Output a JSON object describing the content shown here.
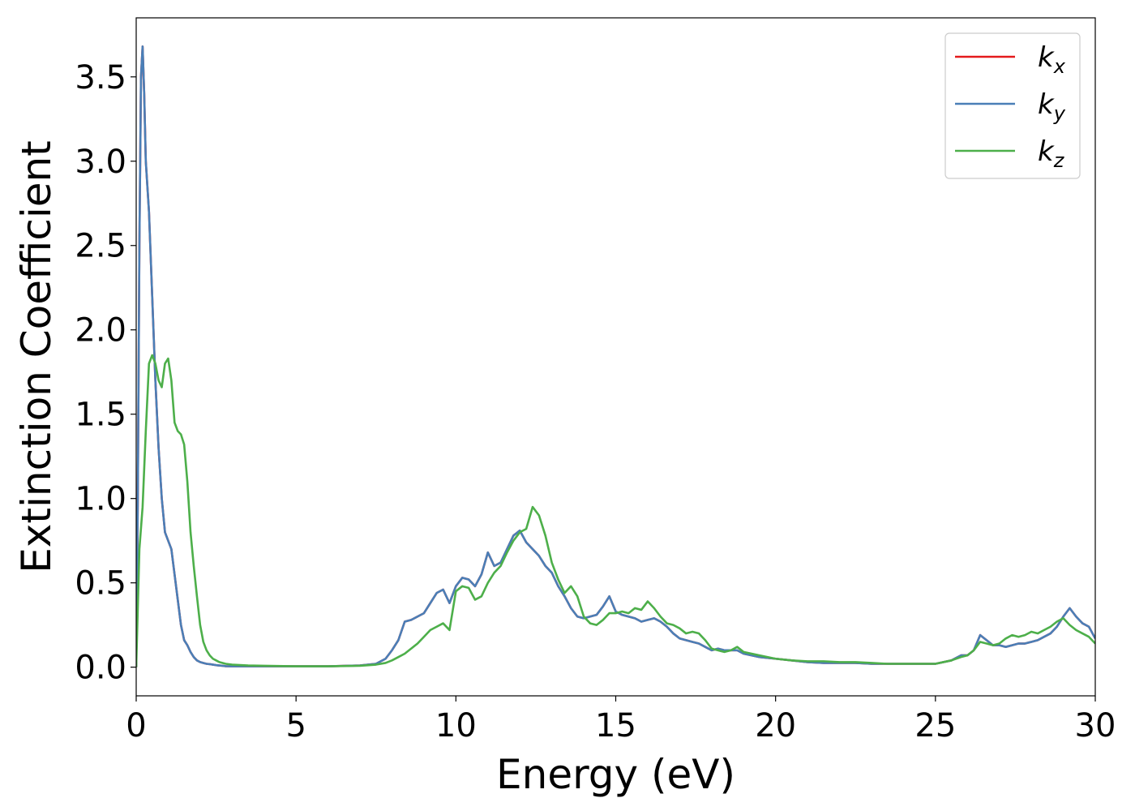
{
  "chart_data": {
    "type": "line",
    "title": "",
    "xlabel": "Energy (eV)",
    "ylabel": "Extinction Coefficient",
    "xlim": [
      0,
      30
    ],
    "ylim": [
      -0.17,
      3.85
    ],
    "xticks": [
      0,
      5,
      10,
      15,
      20,
      25,
      30
    ],
    "yticks": [
      0.0,
      0.5,
      1.0,
      1.5,
      2.0,
      2.5,
      3.0,
      3.5
    ],
    "xtick_labels": [
      "0",
      "5",
      "10",
      "15",
      "20",
      "25",
      "30"
    ],
    "ytick_labels": [
      "0.0",
      "0.5",
      "1.0",
      "1.5",
      "2.0",
      "2.5",
      "3.0",
      "3.5"
    ],
    "grid": false,
    "legend_position": "top-right",
    "series": [
      {
        "name": "k_x",
        "label_main": "k",
        "label_sub": "x",
        "color": "#e41a1c",
        "x": [
          0,
          0.05,
          0.1,
          0.15,
          0.2,
          0.25,
          0.3,
          0.4,
          0.5,
          0.6,
          0.7,
          0.8,
          0.9,
          1.0,
          1.1,
          1.2,
          1.3,
          1.4,
          1.5,
          1.6,
          1.7,
          1.8,
          1.9,
          2.0,
          2.1,
          2.2,
          2.3,
          2.4,
          2.5,
          2.6,
          2.7,
          2.8,
          3.0,
          3.5,
          4,
          5,
          6,
          7,
          7.5,
          7.8,
          8.0,
          8.2,
          8.4,
          8.6,
          8.8,
          9.0,
          9.2,
          9.4,
          9.6,
          9.8,
          10.0,
          10.2,
          10.4,
          10.6,
          10.8,
          11.0,
          11.2,
          11.4,
          11.6,
          11.8,
          12.0,
          12.2,
          12.4,
          12.6,
          12.8,
          13.0,
          13.2,
          13.4,
          13.6,
          13.8,
          14.0,
          14.2,
          14.4,
          14.6,
          14.8,
          15.0,
          15.2,
          15.4,
          15.6,
          15.8,
          16.0,
          16.2,
          16.4,
          16.6,
          16.8,
          17.0,
          17.2,
          17.4,
          17.6,
          17.8,
          18.0,
          18.2,
          18.4,
          18.6,
          18.8,
          19.0,
          19.5,
          20,
          20.5,
          21,
          21.5,
          22,
          22.5,
          23,
          23.5,
          24,
          24.5,
          25,
          25.5,
          25.8,
          26.0,
          26.2,
          26.4,
          26.6,
          26.8,
          27.0,
          27.2,
          27.4,
          27.6,
          27.8,
          28.0,
          28.2,
          28.4,
          28.6,
          28.8,
          29.0,
          29.2,
          29.4,
          29.6,
          29.8,
          30.0
        ],
        "y": [
          0.0,
          1.0,
          2.5,
          3.5,
          3.68,
          3.4,
          3.0,
          2.7,
          2.2,
          1.7,
          1.3,
          1.0,
          0.8,
          0.75,
          0.7,
          0.55,
          0.4,
          0.25,
          0.16,
          0.13,
          0.09,
          0.06,
          0.04,
          0.03,
          0.025,
          0.02,
          0.018,
          0.015,
          0.012,
          0.01,
          0.008,
          0.006,
          0.005,
          0.005,
          0.005,
          0.005,
          0.005,
          0.01,
          0.02,
          0.05,
          0.1,
          0.16,
          0.27,
          0.28,
          0.3,
          0.32,
          0.38,
          0.44,
          0.46,
          0.38,
          0.48,
          0.53,
          0.52,
          0.48,
          0.55,
          0.68,
          0.6,
          0.62,
          0.7,
          0.78,
          0.81,
          0.74,
          0.7,
          0.66,
          0.6,
          0.56,
          0.48,
          0.42,
          0.35,
          0.3,
          0.29,
          0.3,
          0.31,
          0.36,
          0.42,
          0.33,
          0.31,
          0.3,
          0.29,
          0.27,
          0.28,
          0.29,
          0.27,
          0.24,
          0.2,
          0.17,
          0.16,
          0.15,
          0.14,
          0.12,
          0.1,
          0.11,
          0.1,
          0.1,
          0.1,
          0.08,
          0.06,
          0.05,
          0.04,
          0.03,
          0.025,
          0.025,
          0.025,
          0.02,
          0.02,
          0.02,
          0.02,
          0.02,
          0.04,
          0.07,
          0.07,
          0.1,
          0.19,
          0.16,
          0.13,
          0.13,
          0.12,
          0.13,
          0.14,
          0.14,
          0.15,
          0.16,
          0.18,
          0.2,
          0.24,
          0.3,
          0.35,
          0.3,
          0.26,
          0.24,
          0.17
        ]
      },
      {
        "name": "k_y",
        "label_main": "k",
        "label_sub": "y",
        "color": "#4a7fb7",
        "x": [
          0,
          0.05,
          0.1,
          0.15,
          0.2,
          0.25,
          0.3,
          0.4,
          0.5,
          0.6,
          0.7,
          0.8,
          0.9,
          1.0,
          1.1,
          1.2,
          1.3,
          1.4,
          1.5,
          1.6,
          1.7,
          1.8,
          1.9,
          2.0,
          2.1,
          2.2,
          2.3,
          2.4,
          2.5,
          2.6,
          2.7,
          2.8,
          3.0,
          3.5,
          4,
          5,
          6,
          7,
          7.5,
          7.8,
          8.0,
          8.2,
          8.4,
          8.6,
          8.8,
          9.0,
          9.2,
          9.4,
          9.6,
          9.8,
          10.0,
          10.2,
          10.4,
          10.6,
          10.8,
          11.0,
          11.2,
          11.4,
          11.6,
          11.8,
          12.0,
          12.2,
          12.4,
          12.6,
          12.8,
          13.0,
          13.2,
          13.4,
          13.6,
          13.8,
          14.0,
          14.2,
          14.4,
          14.6,
          14.8,
          15.0,
          15.2,
          15.4,
          15.6,
          15.8,
          16.0,
          16.2,
          16.4,
          16.6,
          16.8,
          17.0,
          17.2,
          17.4,
          17.6,
          17.8,
          18.0,
          18.2,
          18.4,
          18.6,
          18.8,
          19.0,
          19.5,
          20,
          20.5,
          21,
          21.5,
          22,
          22.5,
          23,
          23.5,
          24,
          24.5,
          25,
          25.5,
          25.8,
          26.0,
          26.2,
          26.4,
          26.6,
          26.8,
          27.0,
          27.2,
          27.4,
          27.6,
          27.8,
          28.0,
          28.2,
          28.4,
          28.6,
          28.8,
          29.0,
          29.2,
          29.4,
          29.6,
          29.8,
          30.0
        ],
        "y": [
          0.0,
          1.0,
          2.5,
          3.5,
          3.68,
          3.4,
          3.0,
          2.7,
          2.2,
          1.7,
          1.3,
          1.0,
          0.8,
          0.75,
          0.7,
          0.55,
          0.4,
          0.25,
          0.16,
          0.13,
          0.09,
          0.06,
          0.04,
          0.03,
          0.025,
          0.02,
          0.018,
          0.015,
          0.012,
          0.01,
          0.008,
          0.006,
          0.005,
          0.005,
          0.005,
          0.005,
          0.005,
          0.01,
          0.02,
          0.05,
          0.1,
          0.16,
          0.27,
          0.28,
          0.3,
          0.32,
          0.38,
          0.44,
          0.46,
          0.38,
          0.48,
          0.53,
          0.52,
          0.48,
          0.55,
          0.68,
          0.6,
          0.62,
          0.7,
          0.78,
          0.81,
          0.74,
          0.7,
          0.66,
          0.6,
          0.56,
          0.48,
          0.42,
          0.35,
          0.3,
          0.29,
          0.3,
          0.31,
          0.36,
          0.42,
          0.33,
          0.31,
          0.3,
          0.29,
          0.27,
          0.28,
          0.29,
          0.27,
          0.24,
          0.2,
          0.17,
          0.16,
          0.15,
          0.14,
          0.12,
          0.1,
          0.11,
          0.1,
          0.1,
          0.1,
          0.08,
          0.06,
          0.05,
          0.04,
          0.03,
          0.025,
          0.025,
          0.025,
          0.02,
          0.02,
          0.02,
          0.02,
          0.02,
          0.04,
          0.07,
          0.07,
          0.1,
          0.19,
          0.16,
          0.13,
          0.13,
          0.12,
          0.13,
          0.14,
          0.14,
          0.15,
          0.16,
          0.18,
          0.2,
          0.24,
          0.3,
          0.35,
          0.3,
          0.26,
          0.24,
          0.17
        ]
      },
      {
        "name": "k_z",
        "label_main": "k",
        "label_sub": "z",
        "color": "#4daf4a",
        "x": [
          0,
          0.1,
          0.2,
          0.3,
          0.4,
          0.5,
          0.6,
          0.7,
          0.8,
          0.9,
          1.0,
          1.1,
          1.2,
          1.3,
          1.4,
          1.5,
          1.6,
          1.7,
          1.8,
          1.9,
          2.0,
          2.1,
          2.2,
          2.3,
          2.4,
          2.5,
          2.6,
          2.8,
          3.0,
          3.5,
          4,
          5,
          6,
          7,
          7.5,
          7.8,
          8.0,
          8.2,
          8.4,
          8.6,
          8.8,
          9.0,
          9.2,
          9.4,
          9.6,
          9.8,
          10.0,
          10.2,
          10.4,
          10.6,
          10.8,
          11.0,
          11.2,
          11.4,
          11.6,
          11.8,
          12.0,
          12.2,
          12.4,
          12.6,
          12.8,
          13.0,
          13.2,
          13.4,
          13.6,
          13.8,
          14.0,
          14.2,
          14.4,
          14.6,
          14.8,
          15.0,
          15.2,
          15.4,
          15.6,
          15.8,
          16.0,
          16.2,
          16.4,
          16.6,
          16.8,
          17.0,
          17.2,
          17.4,
          17.6,
          17.8,
          18.0,
          18.2,
          18.4,
          18.6,
          18.8,
          19.0,
          19.5,
          20,
          20.5,
          21,
          21.5,
          22,
          22.5,
          23,
          23.5,
          24,
          24.5,
          25,
          25.5,
          25.8,
          26.0,
          26.2,
          26.4,
          26.6,
          26.8,
          27.0,
          27.2,
          27.4,
          27.6,
          27.8,
          28.0,
          28.2,
          28.4,
          28.6,
          28.8,
          29.0,
          29.2,
          29.4,
          29.6,
          29.8,
          30.0
        ],
        "y": [
          0.0,
          0.7,
          0.95,
          1.4,
          1.8,
          1.85,
          1.8,
          1.7,
          1.66,
          1.8,
          1.83,
          1.7,
          1.45,
          1.4,
          1.38,
          1.32,
          1.1,
          0.8,
          0.6,
          0.42,
          0.25,
          0.15,
          0.1,
          0.07,
          0.05,
          0.04,
          0.03,
          0.02,
          0.015,
          0.01,
          0.008,
          0.005,
          0.005,
          0.008,
          0.015,
          0.025,
          0.04,
          0.06,
          0.08,
          0.11,
          0.14,
          0.18,
          0.22,
          0.24,
          0.26,
          0.22,
          0.45,
          0.48,
          0.47,
          0.4,
          0.42,
          0.5,
          0.56,
          0.6,
          0.68,
          0.75,
          0.8,
          0.82,
          0.95,
          0.9,
          0.78,
          0.62,
          0.52,
          0.44,
          0.48,
          0.42,
          0.3,
          0.26,
          0.25,
          0.28,
          0.32,
          0.32,
          0.33,
          0.32,
          0.35,
          0.34,
          0.39,
          0.35,
          0.3,
          0.26,
          0.25,
          0.23,
          0.2,
          0.21,
          0.2,
          0.16,
          0.11,
          0.1,
          0.09,
          0.1,
          0.12,
          0.09,
          0.07,
          0.05,
          0.04,
          0.035,
          0.035,
          0.03,
          0.03,
          0.025,
          0.02,
          0.02,
          0.02,
          0.02,
          0.04,
          0.06,
          0.07,
          0.1,
          0.15,
          0.14,
          0.13,
          0.14,
          0.17,
          0.19,
          0.18,
          0.19,
          0.21,
          0.2,
          0.22,
          0.24,
          0.27,
          0.29,
          0.25,
          0.22,
          0.2,
          0.18,
          0.14
        ]
      }
    ]
  }
}
